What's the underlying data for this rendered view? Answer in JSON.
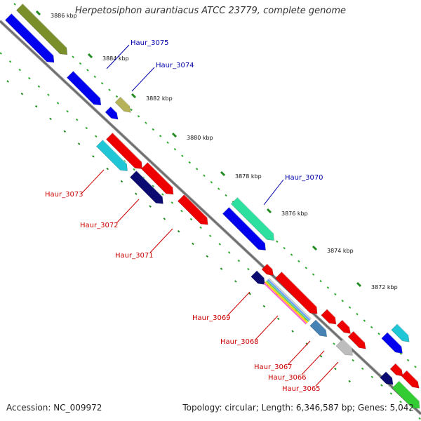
{
  "header": {
    "title": "Herpetosiphon aurantiacus ATCC 23779, complete genome"
  },
  "footer": {
    "accession": "Accession: NC_009972",
    "summary": "Topology: circular; Length: 6,346,587 bp; Genes: 5,042"
  },
  "ruler": {
    "unit": "kbp",
    "ticks": [
      "3886 kbp",
      "3884 kbp",
      "3882 kbp",
      "3880 kbp",
      "3878 kbp",
      "3876 kbp",
      "3874 kbp",
      "3872 kbp"
    ]
  },
  "genes": {
    "labeled": [
      "Haur_3075",
      "Haur_3074",
      "Haur_3073",
      "Haur_3072",
      "Haur_3071",
      "Haur_3070",
      "Haur_3069",
      "Haur_3068",
      "Haur_3067",
      "Haur_3066",
      "Haur_3065"
    ],
    "strand_colors": {
      "forward": "#0000aa",
      "reverse": "#cc0000"
    }
  },
  "colors": {
    "backbone": "#8a8a8a",
    "tick_major": "#228b22",
    "tick_minor": "#33aa33",
    "red": "#ee0000",
    "blue": "#0000ee",
    "olive": "#7a8f2a",
    "khaki": "#b5b25a",
    "cyan": "#1fc6d6",
    "navy": "#0a0a70",
    "mint": "#2ee0a0",
    "steel": "#4682b4",
    "grey": "#bdbdbd",
    "green": "#33cc33"
  }
}
